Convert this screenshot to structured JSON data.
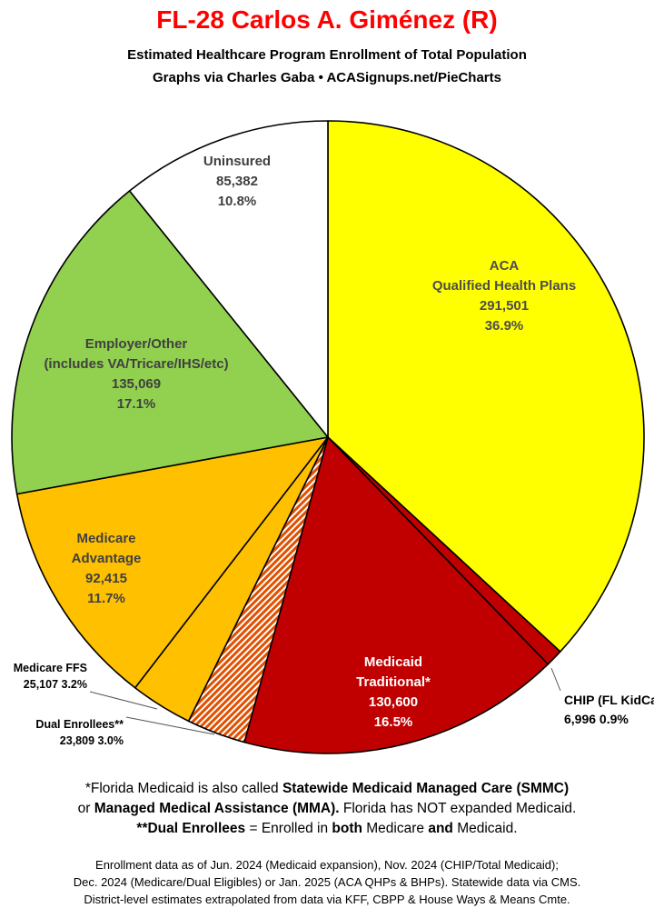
{
  "title": "FL-28 Carlos A. Giménez (R)",
  "subtitle1": "Estimated Healthcare Program Enrollment of Total Population",
  "subtitle2": "Graphs via Charles Gaba   •   ACASignups.net/PieCharts",
  "chart_data": {
    "type": "pie",
    "start_angle_deg": 0,
    "direction": "clockwise",
    "slices": [
      {
        "lines": [
          "ACA",
          "Qualified Health Plans",
          "291,501",
          "36.9%"
        ],
        "value": 291501,
        "percent": 36.9,
        "color": "#ffff00",
        "label_color": "#4d4d4d",
        "label_inside": true
      },
      {
        "lines": [
          "CHIP (FL KidCare)",
          "6,996 0.9%"
        ],
        "value": 6996,
        "percent": 0.9,
        "color": "#c00000",
        "label_color": "#000000",
        "label_inside": false
      },
      {
        "lines": [
          "Medicaid",
          "Traditional*",
          "130,600",
          "16.5%"
        ],
        "value": 130600,
        "percent": 16.5,
        "color": "#c00000",
        "label_color": "#ffffff",
        "label_inside": true
      },
      {
        "lines": [
          "Dual Enrollees**",
          "23,809 3.0%"
        ],
        "value": 23809,
        "percent": 3.0,
        "color": "#f5a000",
        "pattern": "hatch",
        "label_color": "#000000",
        "label_inside": false
      },
      {
        "lines": [
          "Medicare FFS",
          "25,107 3.2%"
        ],
        "value": 25107,
        "percent": 3.2,
        "color": "#ffc000",
        "label_color": "#000000",
        "label_inside": false
      },
      {
        "lines": [
          "Medicare",
          "Advantage",
          "92,415",
          "11.7%"
        ],
        "value": 92415,
        "percent": 11.7,
        "color": "#ffc000",
        "label_color": "#404040",
        "label_inside": true
      },
      {
        "lines": [
          "Employer/Other",
          "(includes VA/Tricare/IHS/etc)",
          "135,069",
          "17.1%"
        ],
        "value": 135069,
        "percent": 17.1,
        "color": "#92d050",
        "label_color": "#404040",
        "label_inside": true
      },
      {
        "lines": [
          "Uninsured",
          "85,382",
          "10.8%"
        ],
        "value": 85382,
        "percent": 10.8,
        "color": "#ffffff",
        "label_color": "#404040",
        "label_inside": true
      }
    ]
  },
  "footnote1": "*Florida Medicaid is also called <b>Statewide Medicaid Managed Care (SMMC)</b>",
  "footnote2": "or <b>Managed Medical Assistance (MMA).</b> Florida has NOT expanded Medicaid.",
  "footnote3": "<b>**Dual Enrollees</b> = Enrolled in <b>both</b> Medicare <b>and</b> Medicaid.",
  "source1": "Enrollment data as of Jun. 2024 (Medicaid expansion), Nov. 2024 (CHIP/Total Medicaid);",
  "source2": "Dec. 2024 (Medicare/Dual Eligibles) or Jan. 2025 (ACA QHPs & BHPs). Statewide data via CMS.",
  "source3": "District-level estimates extrapolated from data via KFF, CBPP & House Ways & Means Cmte."
}
